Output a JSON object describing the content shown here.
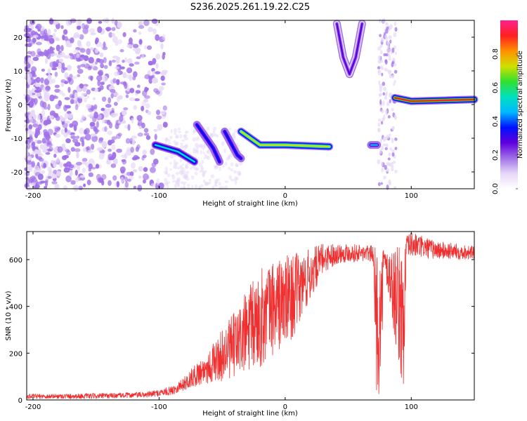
{
  "title": "S236.2025.261.19.22.C25",
  "chart_data": [
    {
      "type": "heatmap",
      "xlabel": "Height of straight line (km)",
      "ylabel": "Frequency (Hz)",
      "xlim": [
        -205,
        150
      ],
      "ylim": [
        -25,
        25
      ],
      "x_ticks": [
        -200,
        -100,
        0,
        100
      ],
      "y_ticks": [
        -20,
        -10,
        0,
        10,
        20
      ],
      "colorbar": {
        "label": "Normalized spectral amplitude",
        "ticks": [
          "0.0",
          "0.2",
          "0.4",
          "0.6",
          "0.8"
        ],
        "range": [
          0,
          1
        ],
        "colormap": [
          "#ffffff",
          "#e6d8f7",
          "#a070e8",
          "#6000dd",
          "#0010ff",
          "#00b8ff",
          "#00e0c0",
          "#30e030",
          "#d0e000",
          "#ff9000",
          "#ff2020",
          "#ff2090"
        ]
      },
      "features": [
        {
          "name": "trace",
          "points": [
            [
              -103,
              -12
            ],
            [
              -85,
              -14
            ],
            [
              -72,
              -17
            ]
          ],
          "amplitude": 0.55
        },
        {
          "name": "trace",
          "points": [
            [
              -70,
              -6
            ],
            [
              -57,
              -13
            ],
            [
              -52,
              -17
            ]
          ],
          "amplitude": 0.4
        },
        {
          "name": "trace",
          "points": [
            [
              -48,
              -8
            ],
            [
              -38,
              -15
            ],
            [
              -35,
              -16
            ]
          ],
          "amplitude": 0.4
        },
        {
          "name": "trace",
          "points": [
            [
              -35,
              -8
            ],
            [
              -20,
              -12
            ],
            [
              0,
              -12
            ],
            [
              35,
              -12.5
            ]
          ],
          "amplitude": 0.75
        },
        {
          "name": "trace",
          "points": [
            [
              68,
              -12
            ],
            [
              73,
              -12
            ]
          ],
          "amplitude": 0.45
        },
        {
          "name": "trace",
          "points": [
            [
              87,
              2
            ],
            [
              100,
              1
            ],
            [
              150,
              1.5
            ]
          ],
          "amplitude": 0.9
        },
        {
          "name": "arc",
          "points": [
            [
              41,
              24
            ],
            [
              46,
              14
            ],
            [
              51,
              9
            ],
            [
              56,
              14
            ],
            [
              61,
              24
            ]
          ],
          "amplitude": 0.25
        }
      ]
    },
    {
      "type": "line",
      "xlabel": "Height of straight line (km)",
      "ylabel": "SNR (10 * v/v)",
      "xlim": [
        -205,
        150
      ],
      "ylim": [
        0,
        720
      ],
      "x_ticks": [
        -200,
        -100,
        0,
        100
      ],
      "y_ticks": [
        0,
        200,
        400,
        600
      ],
      "color": "#f03030",
      "envelope": {
        "x": [
          -205,
          -150,
          -110,
          -100,
          -90,
          -80,
          -70,
          -60,
          -50,
          -40,
          -30,
          -20,
          -10,
          0,
          10,
          20,
          30,
          40,
          50,
          60,
          70,
          72,
          76,
          78,
          94,
          96,
          100,
          120,
          150
        ],
        "low": [
          5,
          5,
          10,
          15,
          20,
          40,
          60,
          70,
          80,
          90,
          100,
          130,
          190,
          220,
          300,
          420,
          540,
          580,
          590,
          590,
          590,
          20,
          20,
          560,
          20,
          600,
          610,
          600,
          600
        ],
        "high": [
          25,
          28,
          35,
          45,
          60,
          100,
          160,
          220,
          300,
          380,
          480,
          560,
          600,
          620,
          630,
          650,
          670,
          670,
          670,
          665,
          660,
          650,
          650,
          650,
          660,
          700,
          720,
          680,
          660
        ]
      }
    }
  ]
}
